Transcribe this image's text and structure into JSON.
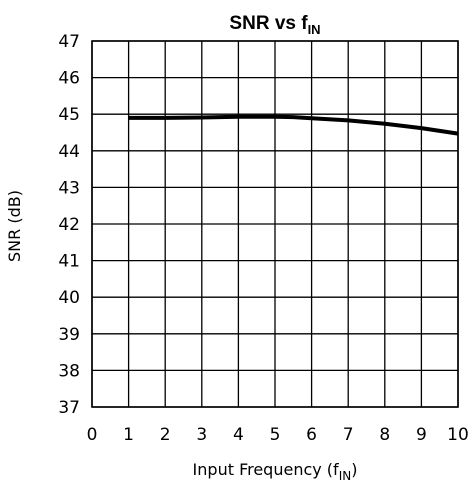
{
  "chart_data": {
    "type": "line",
    "title": "SNR vs f",
    "title_subscript": "IN",
    "xlabel": "Input Frequency (f",
    "xlabel_subscript": "IN",
    "xlabel_suffix": ")",
    "ylabel": "SNR (dB)",
    "xlim": [
      0,
      10
    ],
    "ylim": [
      37,
      47
    ],
    "xticks": [
      "0",
      "1",
      "2",
      "3",
      "4",
      "5",
      "6",
      "7",
      "8",
      "9",
      "10"
    ],
    "yticks": [
      "37",
      "38",
      "39",
      "40",
      "41",
      "42",
      "43",
      "44",
      "45",
      "46",
      "47"
    ],
    "grid": true,
    "series": [
      {
        "x": [
          1,
          2,
          3,
          4,
          5,
          5.5,
          6,
          7,
          8,
          9,
          10
        ],
        "y": [
          44.9,
          44.9,
          44.91,
          44.93,
          44.93,
          44.92,
          44.89,
          44.83,
          44.74,
          44.62,
          44.47
        ]
      }
    ],
    "colors": {
      "line": "#000000",
      "grid": "#000000",
      "background": "#ffffff"
    }
  }
}
